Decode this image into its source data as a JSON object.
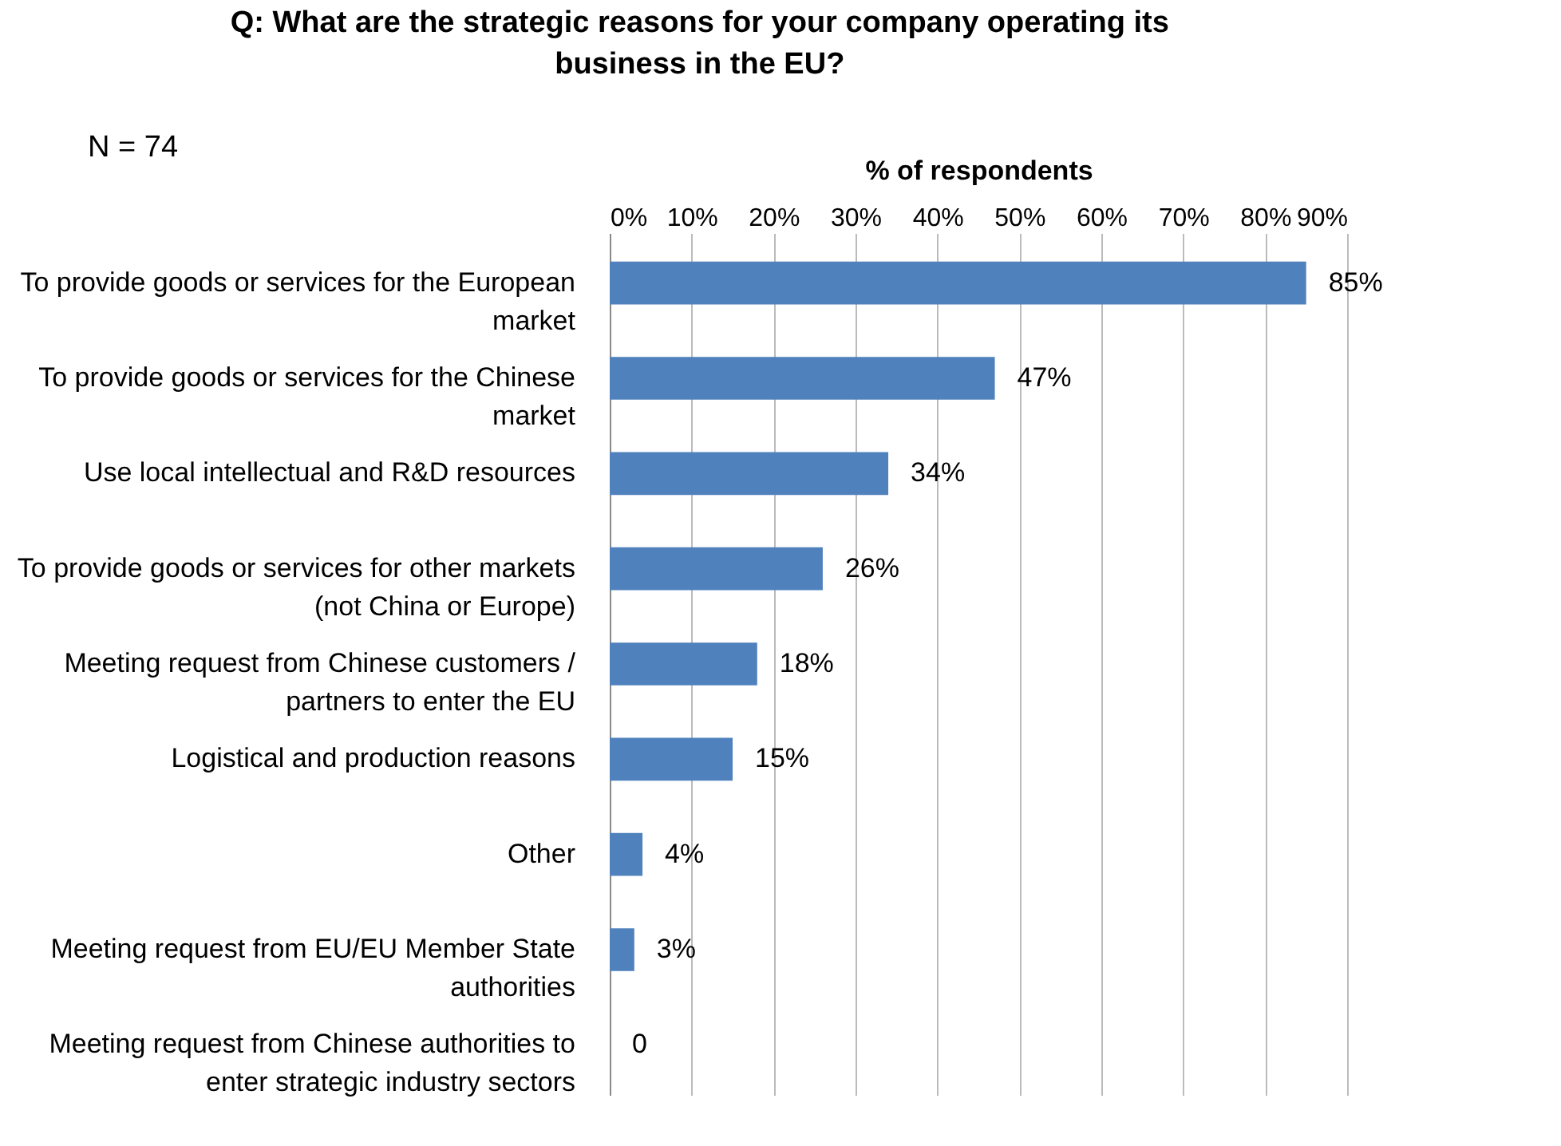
{
  "chart_data": {
    "type": "bar",
    "orientation": "horizontal",
    "title": "Q: What are the strategic reasons for your company operating its business in the EU?",
    "xlabel": "% of respondents",
    "annotations": [
      "N = 74"
    ],
    "categories": [
      "To provide goods or services for the European market",
      "To provide goods or services for the Chinese market",
      "Use local intellectual and R&D resources",
      "To provide goods or services for other markets (not China or Europe)",
      "Meeting request from Chinese customers / partners to enter the EU",
      "Logistical and production reasons",
      "Other",
      "Meeting request from EU/EU Member State authorities",
      "Meeting request from Chinese authorities to enter strategic industry sectors"
    ],
    "values": [
      85,
      47,
      34,
      26,
      18,
      15,
      4,
      3,
      0
    ],
    "value_labels": [
      "85%",
      "47%",
      "34%",
      "26%",
      "18%",
      "15%",
      "4%",
      "3%",
      "0"
    ],
    "color": "#4f81bd",
    "xlim": [
      0,
      90
    ],
    "xticks": [
      {
        "value": 0,
        "label": "0%"
      },
      {
        "value": 10,
        "label": "10%"
      },
      {
        "value": 20,
        "label": "20%"
      },
      {
        "value": 30,
        "label": "30%"
      },
      {
        "value": 40,
        "label": "40%"
      },
      {
        "value": 50,
        "label": "50%"
      },
      {
        "value": 60,
        "label": "60%"
      },
      {
        "value": 70,
        "label": "70%"
      },
      {
        "value": 80,
        "label": "80%"
      },
      {
        "value": 90,
        "label": "90%"
      }
    ],
    "grid": "x"
  }
}
